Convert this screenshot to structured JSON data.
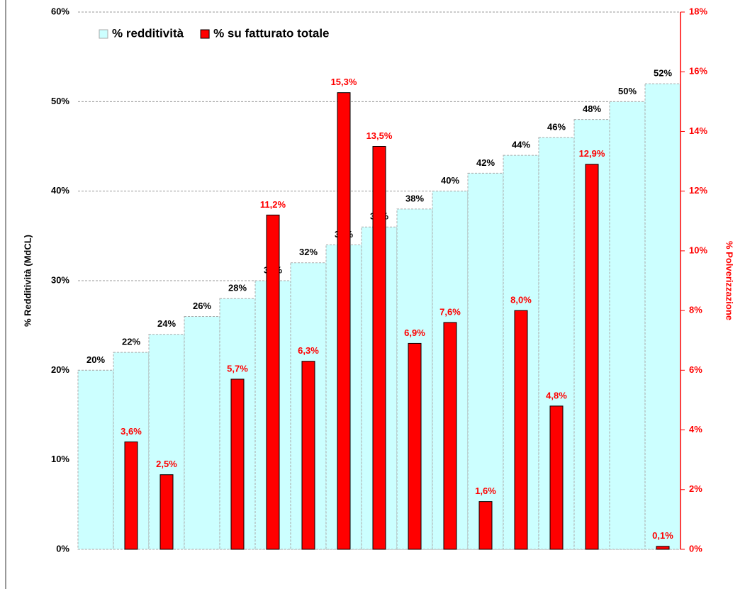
{
  "chart_data": {
    "type": "bar",
    "categories": [
      null,
      null,
      null,
      null,
      null,
      null,
      null,
      null,
      null,
      null,
      null,
      null,
      null,
      null,
      null,
      null,
      null
    ],
    "series": [
      {
        "name": "% redditività",
        "color": "#ccffff",
        "values": [
          20,
          22,
          24,
          26,
          28,
          30,
          32,
          34,
          36,
          38,
          40,
          42,
          44,
          46,
          48,
          50,
          52
        ],
        "value_labels": [
          "20%",
          "22%",
          "24%",
          "26%",
          "28%",
          "30%",
          "32%",
          "34%",
          "36%",
          "38%",
          "40%",
          "42%",
          "44%",
          "46%",
          "48%",
          "50%",
          "52%"
        ]
      },
      {
        "name": "% su fatturato totale",
        "color": "#ff0000",
        "axis": "y2",
        "values": [
          null,
          3.6,
          2.5,
          null,
          5.7,
          11.2,
          6.3,
          15.3,
          13.5,
          6.9,
          7.6,
          1.6,
          8.0,
          4.8,
          12.9,
          null,
          0.1
        ],
        "value_labels": [
          null,
          "3,6%",
          "2,5%",
          null,
          "5,7%",
          "11,2%",
          "6,3%",
          "15,3%",
          "13,5%",
          "6,9%",
          "7,6%",
          "1,6%",
          "8,0%",
          "4,8%",
          "12,9%",
          null,
          "0,1%"
        ]
      }
    ],
    "ylabel": "% Redditività (MdCL)",
    "y2label": "% Polverizzazione",
    "ylim": [
      0,
      60
    ],
    "yticks": [
      {
        "value": 0,
        "label": "0%"
      },
      {
        "value": 10,
        "label": "10%"
      },
      {
        "value": 20,
        "label": "20%"
      },
      {
        "value": 30,
        "label": "30%"
      },
      {
        "value": 40,
        "label": "40%"
      },
      {
        "value": 50,
        "label": "50%"
      },
      {
        "value": 60,
        "label": "60%"
      }
    ],
    "y2lim": [
      0,
      18
    ],
    "y2ticks": [
      {
        "value": 0,
        "label": "0%"
      },
      {
        "value": 2,
        "label": "2%"
      },
      {
        "value": 4,
        "label": "4%"
      },
      {
        "value": 6,
        "label": "6%"
      },
      {
        "value": 8,
        "label": "8%"
      },
      {
        "value": 10,
        "label": "10%"
      },
      {
        "value": 12,
        "label": "12%"
      },
      {
        "value": 14,
        "label": "14%"
      },
      {
        "value": 16,
        "label": "16%"
      },
      {
        "value": 18,
        "label": "18%"
      }
    ],
    "grid": true,
    "legend": "top-left"
  }
}
